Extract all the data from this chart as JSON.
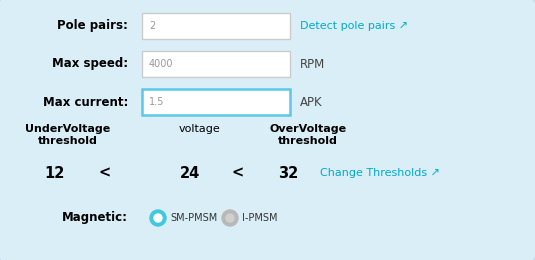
{
  "bg_color": "#daeef7",
  "box_border_normal": "#cccccc",
  "box_border_active": "#5bc8e8",
  "link_color": "#00aacc",
  "row1_label": "Pole pairs:",
  "row1_value": "2",
  "row1_link": "Detect pole pairs ↗",
  "row2_label": "Max speed:",
  "row2_value": "4000",
  "row2_unit": "RPM",
  "row3_label": "Max current:",
  "row3_value": "1.5",
  "row3_unit": "APK",
  "row4_label1": "UnderVoltage\nthreshold",
  "row4_label2": "voltage",
  "row4_label3": "OverVoltage\nthreshold",
  "row5_v1": "12",
  "row5_lt1": "<",
  "row5_v2": "24",
  "row5_lt2": "<",
  "row5_v3": "32",
  "row5_link": "Change Thresholds ↗",
  "row6_label": "Magnetic:",
  "radio1_label": "SM-PMSM",
  "radio2_label": "I-PMSM",
  "figsize": [
    5.35,
    2.6
  ],
  "dpi": 100
}
